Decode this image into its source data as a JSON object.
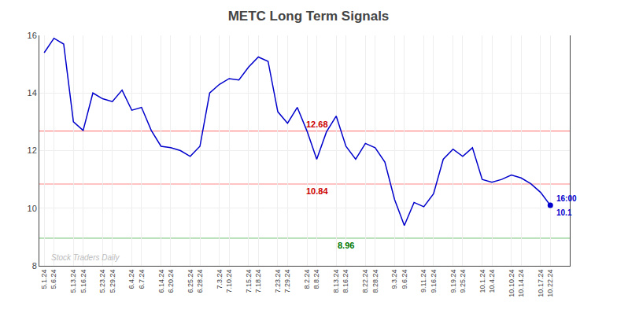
{
  "chart_data": {
    "type": "line",
    "title": "METC Long Term Signals",
    "categories": [
      "5.1.24",
      "5.6.24",
      null,
      "5.13.24",
      "5.16.24",
      null,
      "5.23.24",
      "5.29.24",
      null,
      "6.4.24",
      "6.7.24",
      null,
      "6.14.24",
      "6.20.24",
      null,
      "6.25.24",
      "6.28.24",
      null,
      "7.3.24",
      "7.10.24",
      null,
      "7.15.24",
      "7.18.24",
      null,
      "7.23.24",
      "7.29.24",
      null,
      "8.2.24",
      "8.8.24",
      null,
      "8.13.24",
      "8.16.24",
      null,
      "8.22.24",
      "8.28.24",
      null,
      "9.3.24",
      "9.6.24",
      null,
      "9.11.24",
      "9.16.24",
      null,
      "9.19.24",
      "9.25.24",
      null,
      "10.1.24",
      "10.4.24",
      null,
      "10.10.24",
      "10.14.24",
      null,
      "10.17.24",
      "10.22.24"
    ],
    "values": [
      15.4,
      15.9,
      15.7,
      13.0,
      12.7,
      14.0,
      13.8,
      13.7,
      14.1,
      13.4,
      13.5,
      12.7,
      12.15,
      12.1,
      12.0,
      11.8,
      12.15,
      14.0,
      14.3,
      14.5,
      14.45,
      14.9,
      15.25,
      15.1,
      13.35,
      12.95,
      13.5,
      12.68,
      11.7,
      12.65,
      13.2,
      12.15,
      11.7,
      12.25,
      12.1,
      11.6,
      10.3,
      9.4,
      10.2,
      10.05,
      10.5,
      11.7,
      12.05,
      11.8,
      12.1,
      11.0,
      10.9,
      11.0,
      11.15,
      11.05,
      10.85,
      10.55,
      10.1
    ],
    "color": "#0000cc",
    "ylim": [
      8,
      16
    ],
    "yticks": [
      8,
      10,
      12,
      14,
      16
    ],
    "grid": true,
    "reference_lines": [
      {
        "value": 12.68,
        "color": "#ff8888",
        "label": "12.68",
        "label_color": "#cc0000"
      },
      {
        "value": 10.84,
        "color": "#ff8888",
        "label": "10.84",
        "label_color": "#cc0000"
      },
      {
        "value": 8.96,
        "color": "#88cc88",
        "label": "8.96",
        "label_color": "#007700"
      }
    ],
    "end_point": {
      "color": "#0000cc",
      "labels": [
        "16:00",
        "10.1"
      ]
    },
    "watermark": {
      "text": "Stock Traders Daily",
      "color": "#bbbbbb"
    }
  }
}
